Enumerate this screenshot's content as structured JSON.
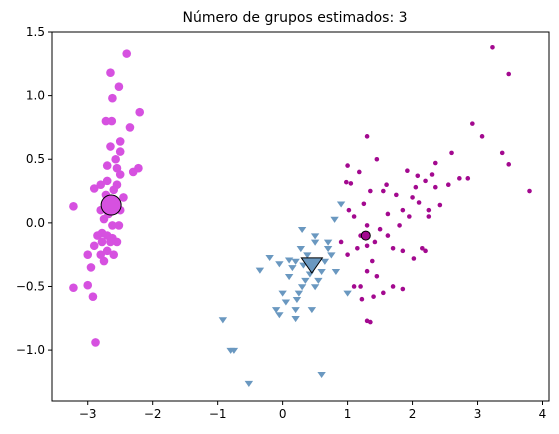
{
  "chart_data": {
    "type": "scatter",
    "title": "Número de grupos estimados: 3",
    "xlabel": "",
    "ylabel": "",
    "xlim": [
      -3.55,
      4.1
    ],
    "ylim": [
      -1.4,
      1.5
    ],
    "x_ticks": [
      -3,
      -2,
      -1,
      0,
      1,
      2,
      3,
      4
    ],
    "x_tick_labels": [
      "−3",
      "−2",
      "−1",
      "0",
      "1",
      "2",
      "3",
      "4"
    ],
    "y_ticks": [
      -1.0,
      -0.5,
      0.0,
      0.5,
      1.0,
      1.5
    ],
    "y_tick_labels": [
      "−1.0",
      "−0.5",
      "0.0",
      "0.5",
      "1.0",
      "1.5"
    ],
    "grid": false,
    "legend": "none",
    "series": [
      {
        "color": "#d651e0",
        "marker": "circle-large",
        "points": [
          [
            -2.4,
            1.33
          ],
          [
            -2.65,
            1.18
          ],
          [
            -2.52,
            1.07
          ],
          [
            -2.62,
            0.98
          ],
          [
            -2.72,
            0.8
          ],
          [
            -2.63,
            0.8
          ],
          [
            -2.2,
            0.87
          ],
          [
            -2.35,
            0.75
          ],
          [
            -2.5,
            0.64
          ],
          [
            -2.65,
            0.6
          ],
          [
            -2.5,
            0.56
          ],
          [
            -2.57,
            0.5
          ],
          [
            -2.7,
            0.45
          ],
          [
            -2.55,
            0.43
          ],
          [
            -2.22,
            0.43
          ],
          [
            -2.5,
            0.38
          ],
          [
            -2.3,
            0.4
          ],
          [
            -2.7,
            0.33
          ],
          [
            -2.8,
            0.3
          ],
          [
            -2.55,
            0.3
          ],
          [
            -2.9,
            0.27
          ],
          [
            -2.6,
            0.26
          ],
          [
            -2.72,
            0.22
          ],
          [
            -2.45,
            0.2
          ],
          [
            -2.62,
            0.17
          ],
          [
            -2.8,
            0.1
          ],
          [
            -2.5,
            0.1
          ],
          [
            -2.68,
            0.07
          ],
          [
            -2.75,
            0.03
          ],
          [
            -2.62,
            -0.02
          ],
          [
            -2.52,
            -0.02
          ],
          [
            -2.78,
            -0.08
          ],
          [
            -2.7,
            -0.1
          ],
          [
            -2.62,
            -0.12
          ],
          [
            -2.85,
            -0.1
          ],
          [
            -2.78,
            -0.15
          ],
          [
            -2.65,
            -0.15
          ],
          [
            -2.55,
            -0.15
          ],
          [
            -2.9,
            -0.18
          ],
          [
            -2.7,
            -0.22
          ],
          [
            -2.6,
            -0.25
          ],
          [
            -2.8,
            -0.25
          ],
          [
            -3.0,
            -0.25
          ],
          [
            -2.75,
            -0.3
          ],
          [
            -3.22,
            0.13
          ],
          [
            -2.95,
            -0.35
          ],
          [
            -3.22,
            -0.51
          ],
          [
            -3.0,
            -0.49
          ],
          [
            -2.92,
            -0.58
          ],
          [
            -2.88,
            -0.94
          ]
        ],
        "center": [
          -2.64,
          0.14
        ]
      },
      {
        "color": "#6a98c0",
        "marker": "triangle-down",
        "points": [
          [
            -0.92,
            -0.76
          ],
          [
            -0.8,
            -1.0
          ],
          [
            -0.75,
            -1.0
          ],
          [
            -0.52,
            -1.26
          ],
          [
            -0.35,
            -0.37
          ],
          [
            -0.2,
            -0.27
          ],
          [
            -0.1,
            -0.68
          ],
          [
            0.05,
            -0.62
          ],
          [
            0.1,
            -0.29
          ],
          [
            0.15,
            -0.35
          ],
          [
            0.2,
            -0.3
          ],
          [
            0.22,
            -0.6
          ],
          [
            0.25,
            -0.55
          ],
          [
            0.3,
            -0.5
          ],
          [
            0.35,
            -0.45
          ],
          [
            0.28,
            -0.2
          ],
          [
            0.32,
            -0.33
          ],
          [
            0.38,
            -0.25
          ],
          [
            0.42,
            -0.4
          ],
          [
            0.45,
            -0.35
          ],
          [
            0.5,
            -0.5
          ],
          [
            0.55,
            -0.45
          ],
          [
            0.6,
            -0.38
          ],
          [
            0.65,
            -0.3
          ],
          [
            0.5,
            -0.1
          ],
          [
            0.7,
            -0.2
          ],
          [
            0.75,
            -0.25
          ],
          [
            0.7,
            -0.15
          ],
          [
            0.8,
            0.03
          ],
          [
            0.9,
            0.15
          ],
          [
            1.0,
            -0.55
          ],
          [
            0.6,
            -1.19
          ],
          [
            -0.05,
            -0.72
          ],
          [
            0.0,
            -0.55
          ],
          [
            0.2,
            -0.75
          ],
          [
            0.45,
            -0.68
          ],
          [
            0.1,
            -0.42
          ],
          [
            -0.05,
            -0.32
          ],
          [
            0.3,
            -0.05
          ],
          [
            0.5,
            -0.15
          ],
          [
            0.82,
            -0.38
          ],
          [
            0.2,
            -0.68
          ]
        ],
        "center": [
          0.45,
          -0.32
        ]
      },
      {
        "color": "#a3098f",
        "marker": "circle-small",
        "points": [
          [
            3.23,
            1.38
          ],
          [
            3.48,
            1.17
          ],
          [
            2.92,
            0.78
          ],
          [
            3.07,
            0.68
          ],
          [
            1.3,
            0.68
          ],
          [
            3.38,
            0.55
          ],
          [
            1.45,
            0.5
          ],
          [
            2.6,
            0.55
          ],
          [
            3.48,
            0.46
          ],
          [
            2.35,
            0.47
          ],
          [
            1.92,
            0.41
          ],
          [
            2.08,
            0.37
          ],
          [
            2.3,
            0.38
          ],
          [
            2.72,
            0.35
          ],
          [
            2.55,
            0.3
          ],
          [
            2.2,
            0.33
          ],
          [
            1.0,
            0.45
          ],
          [
            1.18,
            0.4
          ],
          [
            1.6,
            0.3
          ],
          [
            2.05,
            0.28
          ],
          [
            2.35,
            0.28
          ],
          [
            2.85,
            0.35
          ],
          [
            3.8,
            0.25
          ],
          [
            0.98,
            0.32
          ],
          [
            1.05,
            0.31
          ],
          [
            1.35,
            0.25
          ],
          [
            1.55,
            0.25
          ],
          [
            1.75,
            0.22
          ],
          [
            2.0,
            0.2
          ],
          [
            2.1,
            0.16
          ],
          [
            2.42,
            0.14
          ],
          [
            2.25,
            0.1
          ],
          [
            1.85,
            0.1
          ],
          [
            1.62,
            0.07
          ],
          [
            1.25,
            0.15
          ],
          [
            1.02,
            0.1
          ],
          [
            1.1,
            0.05
          ],
          [
            1.95,
            0.05
          ],
          [
            2.25,
            0.05
          ],
          [
            1.3,
            -0.02
          ],
          [
            1.5,
            -0.05
          ],
          [
            1.8,
            -0.02
          ],
          [
            1.62,
            -0.1
          ],
          [
            1.42,
            -0.15
          ],
          [
            1.3,
            -0.18
          ],
          [
            1.2,
            -0.1
          ],
          [
            1.15,
            -0.2
          ],
          [
            0.9,
            -0.15
          ],
          [
            1.0,
            -0.25
          ],
          [
            1.38,
            -0.3
          ],
          [
            1.7,
            -0.2
          ],
          [
            2.15,
            -0.2
          ],
          [
            2.02,
            -0.28
          ],
          [
            1.85,
            -0.22
          ],
          [
            1.3,
            -0.38
          ],
          [
            1.45,
            -0.42
          ],
          [
            1.2,
            -0.5
          ],
          [
            1.55,
            -0.55
          ],
          [
            1.7,
            -0.5
          ],
          [
            1.85,
            -0.52
          ],
          [
            1.4,
            -0.58
          ],
          [
            1.22,
            -0.6
          ],
          [
            1.3,
            -0.77
          ],
          [
            1.35,
            -0.78
          ],
          [
            2.2,
            -0.22
          ],
          [
            1.1,
            -0.5
          ]
        ],
        "center": [
          1.28,
          -0.1
        ]
      }
    ]
  }
}
